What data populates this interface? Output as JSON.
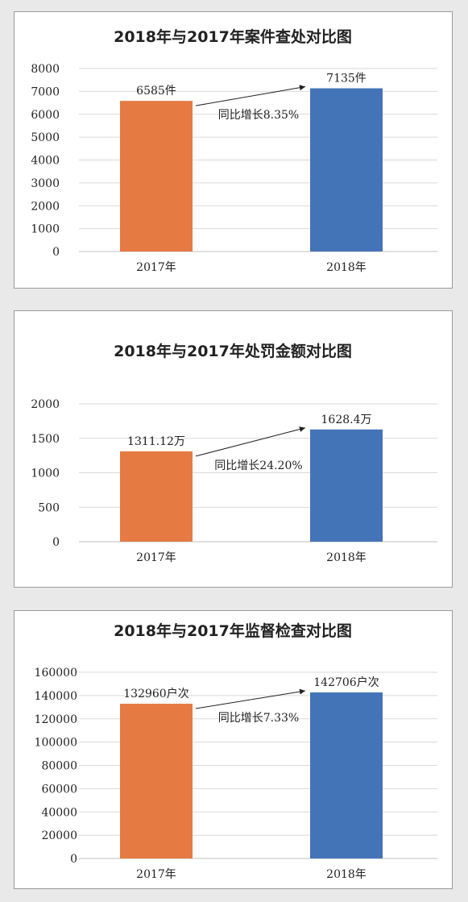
{
  "colors": {
    "bar2017": "#e57a42",
    "bar2018": "#4474b8",
    "grid": "#d9d9d9",
    "axis": "#bfbfbf",
    "text": "#222222"
  },
  "chart_data": [
    {
      "type": "bar",
      "title": "2018年与2017年案件查处对比图",
      "categories": [
        "2017年",
        "2018年"
      ],
      "values": [
        6585,
        7135
      ],
      "value_labels": [
        "6585件",
        "7135件"
      ],
      "annotation": "同比增长8.35%",
      "yticks": [
        "0",
        "1000",
        "2000",
        "3000",
        "4000",
        "5000",
        "6000",
        "7000",
        "8000"
      ],
      "ylim": [
        0,
        8000
      ],
      "grid": true
    },
    {
      "type": "bar",
      "title": "2018年与2017年处罚金额对比图",
      "categories": [
        "2017年",
        "2018年"
      ],
      "values": [
        1311.12,
        1628.4
      ],
      "value_labels": [
        "1311.12万",
        "1628.4万"
      ],
      "annotation": "同比增长24.20%",
      "yticks": [
        "0",
        "500",
        "1000",
        "1500",
        "2000"
      ],
      "ylim": [
        0,
        2000
      ],
      "grid": true
    },
    {
      "type": "bar",
      "title": "2018年与2017年监督检查对比图",
      "categories": [
        "2017年",
        "2018年"
      ],
      "values": [
        132960,
        142706
      ],
      "value_labels": [
        "132960户次",
        "142706户次"
      ],
      "annotation": "同比增长7.33%",
      "yticks": [
        "0",
        "20000",
        "40000",
        "60000",
        "80000",
        "100000",
        "120000",
        "140000",
        "160000"
      ],
      "ylim": [
        0,
        160000
      ],
      "grid": true
    }
  ]
}
